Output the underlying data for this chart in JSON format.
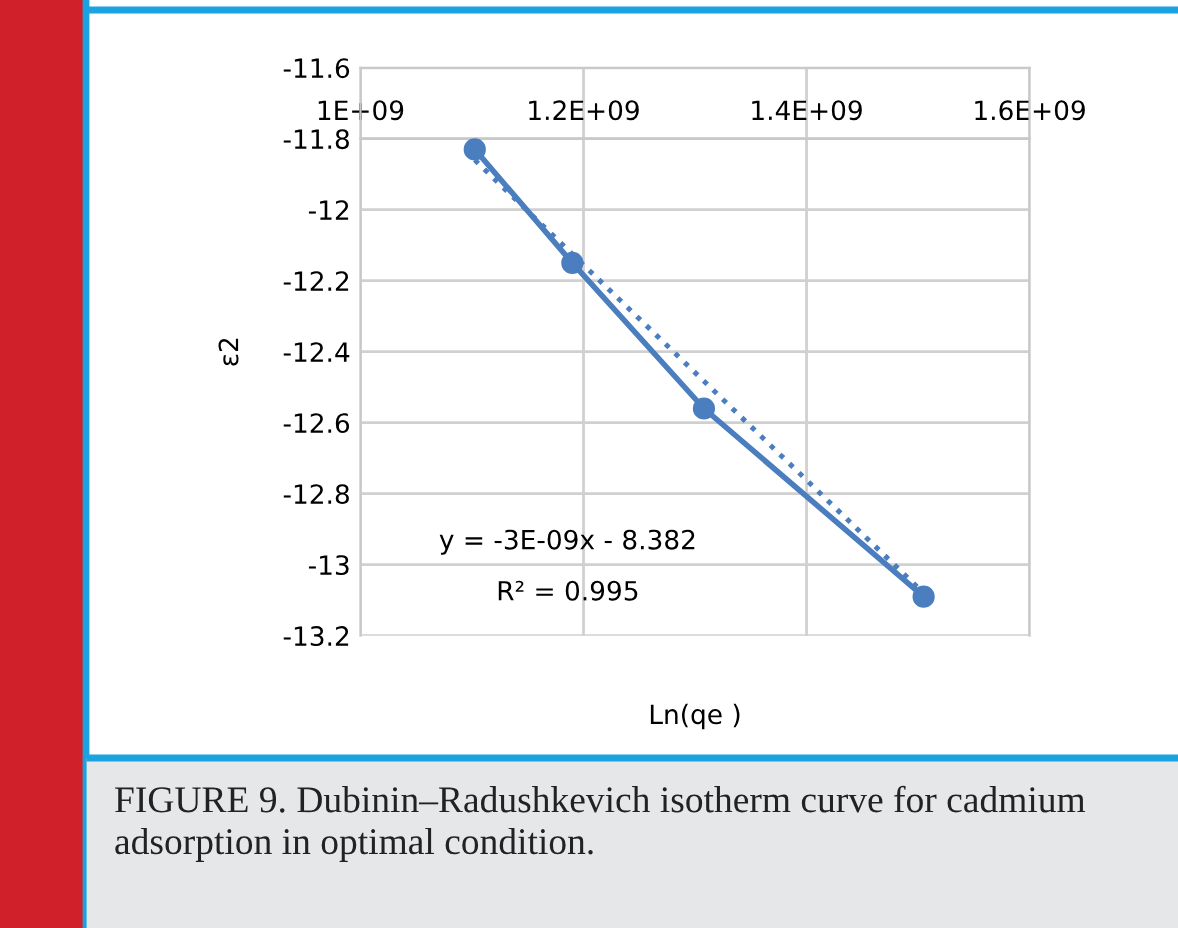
{
  "chart_data": {
    "type": "line",
    "xlabel": "Ln(qe )",
    "ylabel": "ε2",
    "series": [
      {
        "color": "#4a7ebf",
        "x": [
          1102500000.0,
          1190000000.0,
          1308000000.0,
          1505000000.0
        ],
        "values": [
          -11.83,
          -12.15,
          -12.56,
          -13.09
        ],
        "marker": "circle",
        "line_style": "solid"
      },
      {
        "color": "#4a7ebf",
        "x": [
          1102500000.0,
          1505000000.0
        ],
        "values": [
          -11.86,
          -13.08
        ],
        "marker": "none",
        "line_style": "dotted"
      }
    ],
    "xlim": [
      1000000000.0,
      1600000000.0
    ],
    "xticks": [
      {
        "value": 1000000000.0,
        "label": "1E+09"
      },
      {
        "value": 1200000000.0,
        "label": "1.2E+09"
      },
      {
        "value": 1400000000.0,
        "label": "1.4E+09"
      },
      {
        "value": 1600000000.0,
        "label": "1.6E+09"
      }
    ],
    "ylim": [
      -13.2,
      -11.6
    ],
    "yticks": [
      -11.6,
      -11.8,
      -12,
      -12.2,
      -12.4,
      -12.6,
      -12.8,
      -13,
      -13.2
    ],
    "grid": true,
    "annotations": [
      "y = -3E-09x - 8.382",
      "R² = 0.995",
      "FIGURE 9. Dubinin–Radushkevich isotherm curve for cadmium adsorption in optimal condition."
    ]
  }
}
